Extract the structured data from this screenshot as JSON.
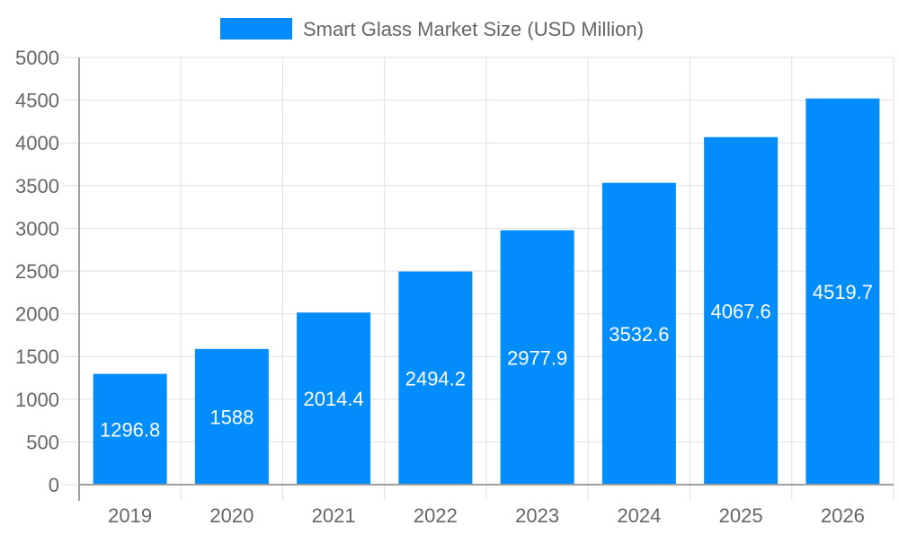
{
  "chart_data": {
    "type": "bar",
    "categories": [
      "2019",
      "2020",
      "2021",
      "2022",
      "2023",
      "2024",
      "2025",
      "2026"
    ],
    "series": [
      {
        "name": "Smart Glass Market Size (USD Million)",
        "values": [
          1296.8,
          1588,
          2014.4,
          2494.2,
          2977.9,
          3532.6,
          4067.6,
          4519.7
        ],
        "labels": [
          "1296.8",
          "1588",
          "2014.4",
          "2494.2",
          "2977.9",
          "3532.6",
          "4067.6",
          "4519.7"
        ]
      }
    ],
    "title": "",
    "xlabel": "",
    "ylabel": "",
    "ylim": [
      0,
      5000
    ],
    "yticks": [
      "0",
      "500",
      "1000",
      "1500",
      "2000",
      "2500",
      "3000",
      "3500",
      "4000",
      "4500",
      "5000"
    ],
    "grid": true,
    "legend_position": "top",
    "colors": {
      "bar": "#038cfc",
      "grid": "#e0e0e0",
      "axis": "#a0a0a0",
      "text": "#666666",
      "data_label": "#ffffff"
    }
  }
}
